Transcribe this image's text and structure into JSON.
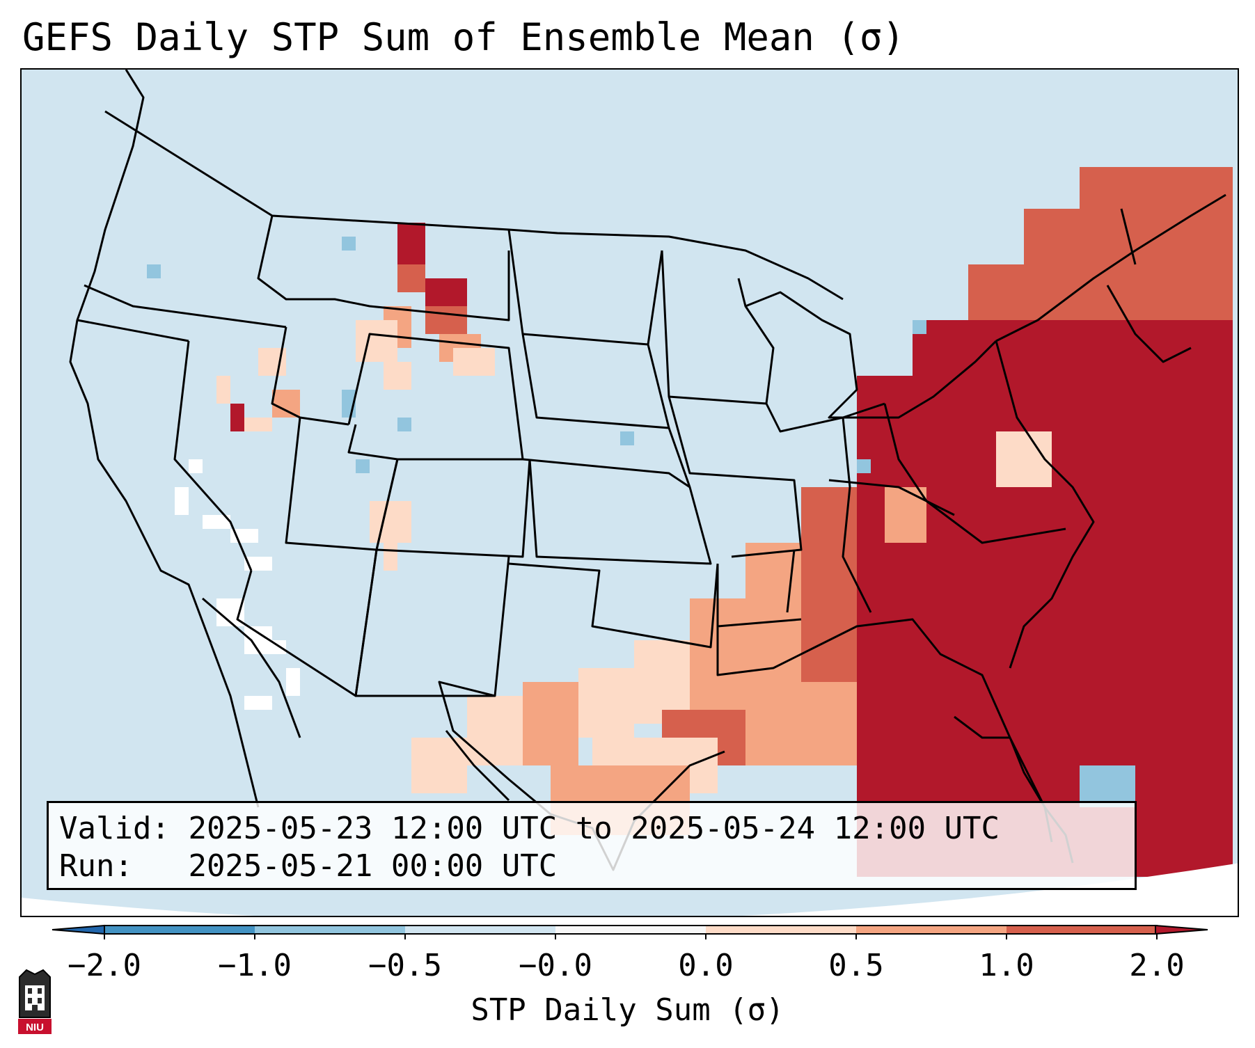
{
  "title": "GEFS Daily STP Sum of Ensemble Mean (σ)",
  "info": {
    "valid_label": "Valid:",
    "valid_value": "2025-05-23 12:00 UTC to 2025-05-24 12:00 UTC",
    "run_label": "Run:",
    "run_value": "2025-05-21 00:00 UTC"
  },
  "colorbar": {
    "label": "STP Daily Sum (σ)",
    "ticks": [
      "−2.0",
      "−1.0",
      "−0.5",
      "−0.0",
      "0.0",
      "0.5",
      "1.0",
      "2.0"
    ],
    "bin_colors": [
      "#4393c3",
      "#92c5de",
      "#d1e5f0",
      "#f7f7f7",
      "#fddbc7",
      "#f4a582",
      "#d6604d"
    ],
    "under_color": "#2166ac",
    "over_color": "#b2182b"
  },
  "map": {
    "background_color": "#d1e5f0",
    "land_outline_color": "#000000",
    "anomaly_levels": [
      "#fddbc7",
      "#f4a582",
      "#d6604d",
      "#b2182b",
      "#92c5de",
      "#ffffff"
    ]
  },
  "logo": {
    "text": "NIU"
  }
}
